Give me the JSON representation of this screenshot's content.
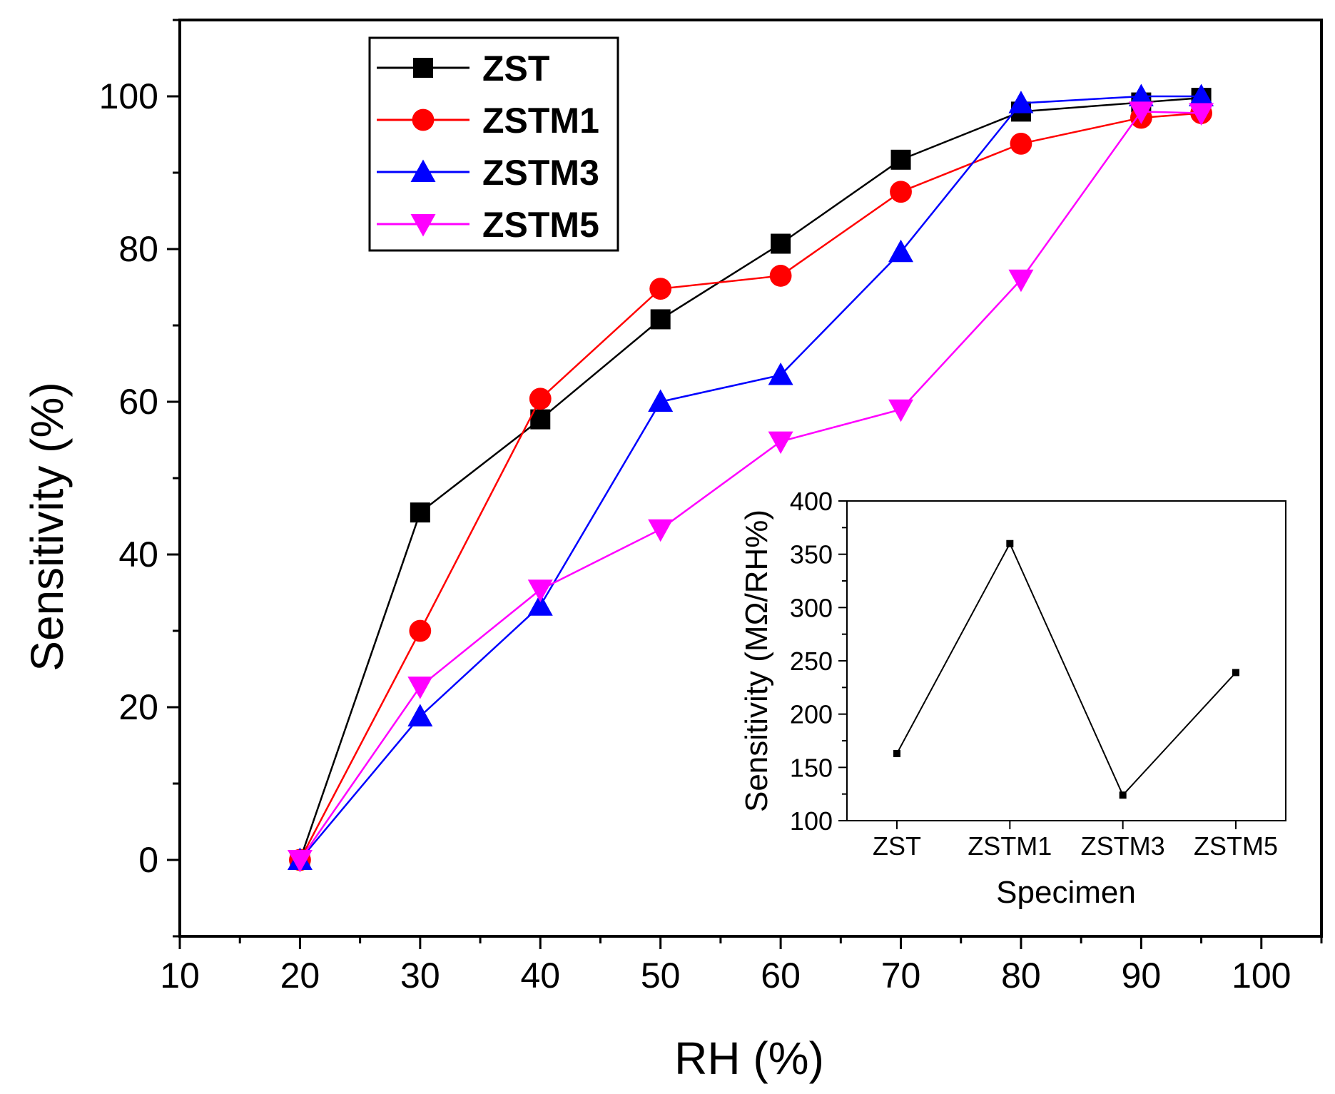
{
  "chart_data": [
    {
      "type": "line",
      "title": "",
      "xlabel": "RH (%)",
      "ylabel": "Sensitivity (%)",
      "xlim": [
        10,
        105
      ],
      "ylim": [
        -10,
        110
      ],
      "xticks": [
        10,
        20,
        30,
        40,
        50,
        60,
        70,
        80,
        90,
        100
      ],
      "yticks": [
        0,
        20,
        40,
        60,
        80,
        100
      ],
      "legend_position": "top-left",
      "grid": false,
      "series": [
        {
          "name": "ZST",
          "color": "#000000",
          "marker": "square",
          "x": [
            20,
            30,
            40,
            50,
            60,
            70,
            80,
            90,
            95
          ],
          "y": [
            0,
            45.5,
            57.7,
            70.8,
            80.7,
            91.7,
            98,
            99.2,
            99.8
          ]
        },
        {
          "name": "ZSTM1",
          "color": "#ff0000",
          "marker": "circle",
          "x": [
            20,
            30,
            40,
            50,
            60,
            70,
            80,
            90,
            95
          ],
          "y": [
            0,
            30,
            60.4,
            74.8,
            76.5,
            87.5,
            93.8,
            97.2,
            97.8
          ]
        },
        {
          "name": "ZSTM3",
          "color": "#0000ff",
          "marker": "triangle-up",
          "x": [
            20,
            30,
            40,
            50,
            60,
            70,
            80,
            90,
            95
          ],
          "y": [
            0,
            18.8,
            33.3,
            60,
            63.5,
            79.6,
            99.1,
            100,
            100
          ]
        },
        {
          "name": "ZSTM5",
          "color": "#ff00ff",
          "marker": "triangle-down",
          "x": [
            20,
            30,
            40,
            50,
            60,
            70,
            80,
            90,
            95
          ],
          "y": [
            0,
            22.7,
            35.4,
            43.3,
            54.8,
            59,
            76,
            98,
            97.8
          ]
        }
      ]
    },
    {
      "type": "line",
      "title": "",
      "xlabel": "Specimen",
      "ylabel": "Sensitivity (MΩ/RH%)",
      "categories": [
        "ZST",
        "ZSTM1",
        "ZSTM3",
        "ZSTM5"
      ],
      "ylim": [
        100,
        400
      ],
      "yticks": [
        100,
        150,
        200,
        250,
        300,
        350,
        400
      ],
      "series": [
        {
          "color": "#000000",
          "marker": "square",
          "values": [
            163,
            360,
            124,
            239
          ]
        }
      ]
    }
  ]
}
